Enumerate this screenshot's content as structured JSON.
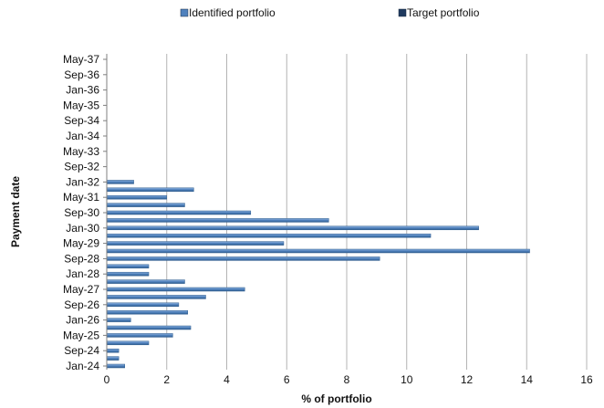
{
  "chart_data": {
    "type": "bar",
    "orientation": "horizontal",
    "xlabel": "% of portfolio",
    "ylabel": "Payment date",
    "xlim": [
      0,
      16
    ],
    "x_ticks": [
      0,
      2,
      4,
      6,
      8,
      10,
      12,
      14,
      16
    ],
    "grid": "vertical",
    "legend_position": "top",
    "legend": [
      {
        "name": "Identified portfolio",
        "color": "#4f81bd",
        "marker": "square"
      },
      {
        "name": "Target portfolio",
        "color": "#1f3a5f",
        "marker": "square"
      }
    ],
    "y_tick_labels": [
      "Jan-24",
      "Sep-24",
      "May-25",
      "Jan-26",
      "Sep-26",
      "May-27",
      "Jan-28",
      "Sep-28",
      "May-29",
      "Jan-30",
      "Sep-30",
      "May-31",
      "Jan-32",
      "Sep-32",
      "May-33",
      "Jan-34",
      "Sep-34",
      "May-35",
      "Jan-36",
      "Sep-36",
      "May-37"
    ],
    "categories": [
      "Jan-24",
      "May-24",
      "Sep-24",
      "Jan-25",
      "May-25",
      "Sep-25",
      "Jan-26",
      "May-26",
      "Sep-26",
      "Jan-27",
      "May-27",
      "Sep-27",
      "Jan-28",
      "May-28",
      "Sep-28",
      "Jan-29",
      "May-29",
      "Sep-29",
      "Jan-30",
      "May-30",
      "Sep-30",
      "Jan-31",
      "May-31",
      "Sep-31",
      "Jan-32",
      "May-32",
      "Sep-32",
      "Jan-33",
      "May-33",
      "Sep-33",
      "Jan-34",
      "May-34",
      "Sep-34",
      "Jan-35",
      "May-35",
      "Sep-35",
      "Jan-36",
      "May-36",
      "Sep-36",
      "Jan-37",
      "May-37"
    ],
    "series": [
      {
        "name": "Identified portfolio",
        "color": "#4f81bd",
        "values": [
          0.6,
          0.4,
          0.4,
          1.4,
          2.2,
          2.8,
          0.8,
          2.7,
          2.4,
          3.3,
          4.6,
          2.6,
          1.4,
          1.4,
          9.1,
          14.1,
          5.9,
          10.8,
          12.4,
          7.4,
          4.8,
          2.6,
          2.0,
          2.9,
          0.9,
          0,
          0,
          0,
          0,
          0,
          0,
          0,
          0,
          0,
          0,
          0,
          0,
          0,
          0,
          0,
          0
        ]
      }
    ]
  }
}
